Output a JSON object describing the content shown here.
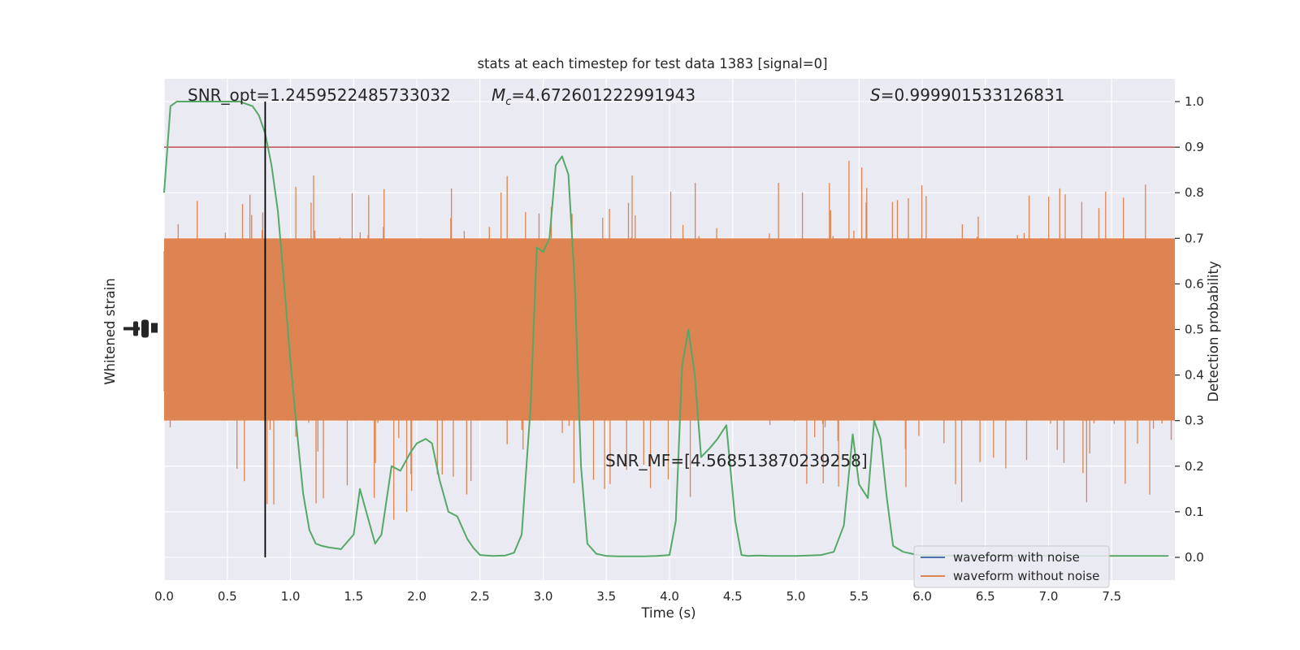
{
  "chart_data": {
    "type": "line",
    "title": "stats at each timestep for test data 1383 [signal=0]",
    "xlabel": "Time (s)",
    "ylabel_left": "Whitened strain",
    "ylabel_right": "Detection probability",
    "xlim": [
      0,
      8.0
    ],
    "ylim_right": [
      -0.05,
      1.05
    ],
    "x_ticks": [
      "0.0",
      "0.5",
      "1.0",
      "1.5",
      "2.0",
      "2.5",
      "3.0",
      "3.5",
      "4.0",
      "4.5",
      "5.0",
      "5.5",
      "6.0",
      "6.5",
      "7.0",
      "7.5"
    ],
    "right_ticks": [
      "0.0",
      "0.1",
      "0.2",
      "0.3",
      "0.4",
      "0.5",
      "0.6",
      "0.7",
      "0.8",
      "0.9",
      "1.0"
    ],
    "annotations": {
      "snr_opt": "SNR_opt=1.2459522485733032",
      "mc_symbol": "M",
      "mc_sub": "c",
      "mc_value": "=4.672601222991943",
      "s_symbol": "S",
      "s_value": "=0.999901533126831",
      "snr_mf": "SNR_MF=[4.568513870239258]"
    },
    "threshold": 0.9,
    "vline_x": 0.8,
    "legend": {
      "placement": "lower-right",
      "entries": [
        "waveform with noise",
        "waveform without noise"
      ]
    },
    "colors": {
      "noise": "#dd8452",
      "signal": "#4c72b0",
      "probability": "#55a868",
      "threshold": "#c44e52",
      "vline": "#000000",
      "background": "#eaeaf2",
      "grid": "#ffffff"
    },
    "series": [
      {
        "name": "waveform with noise",
        "note": "dense noise band spanning approximately 0.3 to 0.7 (right-axis units)",
        "band": [
          0.3,
          0.7
        ]
      },
      {
        "name": "waveform without noise",
        "values": []
      },
      {
        "x": [
          0.0,
          0.05,
          0.1,
          0.15,
          0.2,
          0.3,
          0.4,
          0.5,
          0.6,
          0.65,
          0.7,
          0.75,
          0.8,
          0.85,
          0.9,
          0.95,
          1.0,
          1.05,
          1.1,
          1.15,
          1.2,
          1.25,
          1.3,
          1.4,
          1.5,
          1.55,
          1.62,
          1.67,
          1.72,
          1.8,
          1.87,
          1.95,
          2.0,
          2.07,
          2.12,
          2.18,
          2.25,
          2.32,
          2.4,
          2.45,
          2.5,
          2.6,
          2.7,
          2.77,
          2.83,
          2.9,
          2.95,
          3.0,
          3.05,
          3.1,
          3.15,
          3.2,
          3.25,
          3.3,
          3.35,
          3.42,
          3.5,
          3.6,
          3.7,
          3.8,
          3.9,
          4.0,
          4.05,
          4.1,
          4.15,
          4.2,
          4.25,
          4.32,
          4.38,
          4.45,
          4.52,
          4.57,
          4.62,
          4.7,
          4.8,
          4.9,
          5.0,
          5.1,
          5.2,
          5.3,
          5.38,
          5.45,
          5.5,
          5.57,
          5.62,
          5.67,
          5.72,
          5.77,
          5.85,
          5.95,
          6.0,
          6.5,
          7.0,
          7.5,
          7.95
        ],
        "values": [
          0.8,
          0.99,
          1.0,
          1.0,
          1.0,
          1.0,
          1.0,
          1.0,
          1.0,
          0.995,
          0.99,
          0.97,
          0.93,
          0.86,
          0.76,
          0.6,
          0.43,
          0.28,
          0.14,
          0.06,
          0.03,
          0.025,
          0.022,
          0.018,
          0.05,
          0.15,
          0.08,
          0.03,
          0.05,
          0.2,
          0.19,
          0.23,
          0.25,
          0.26,
          0.25,
          0.17,
          0.1,
          0.09,
          0.04,
          0.02,
          0.005,
          0.003,
          0.004,
          0.01,
          0.05,
          0.33,
          0.68,
          0.67,
          0.7,
          0.86,
          0.88,
          0.84,
          0.6,
          0.2,
          0.03,
          0.008,
          0.003,
          0.002,
          0.002,
          0.002,
          0.003,
          0.005,
          0.08,
          0.42,
          0.5,
          0.4,
          0.22,
          0.24,
          0.26,
          0.29,
          0.08,
          0.005,
          0.003,
          0.004,
          0.003,
          0.003,
          0.003,
          0.004,
          0.005,
          0.012,
          0.07,
          0.27,
          0.16,
          0.13,
          0.3,
          0.26,
          0.13,
          0.025,
          0.012,
          0.006,
          0.004,
          0.003,
          0.003,
          0.003,
          0.003
        ],
        "name": ""
      }
    ]
  }
}
